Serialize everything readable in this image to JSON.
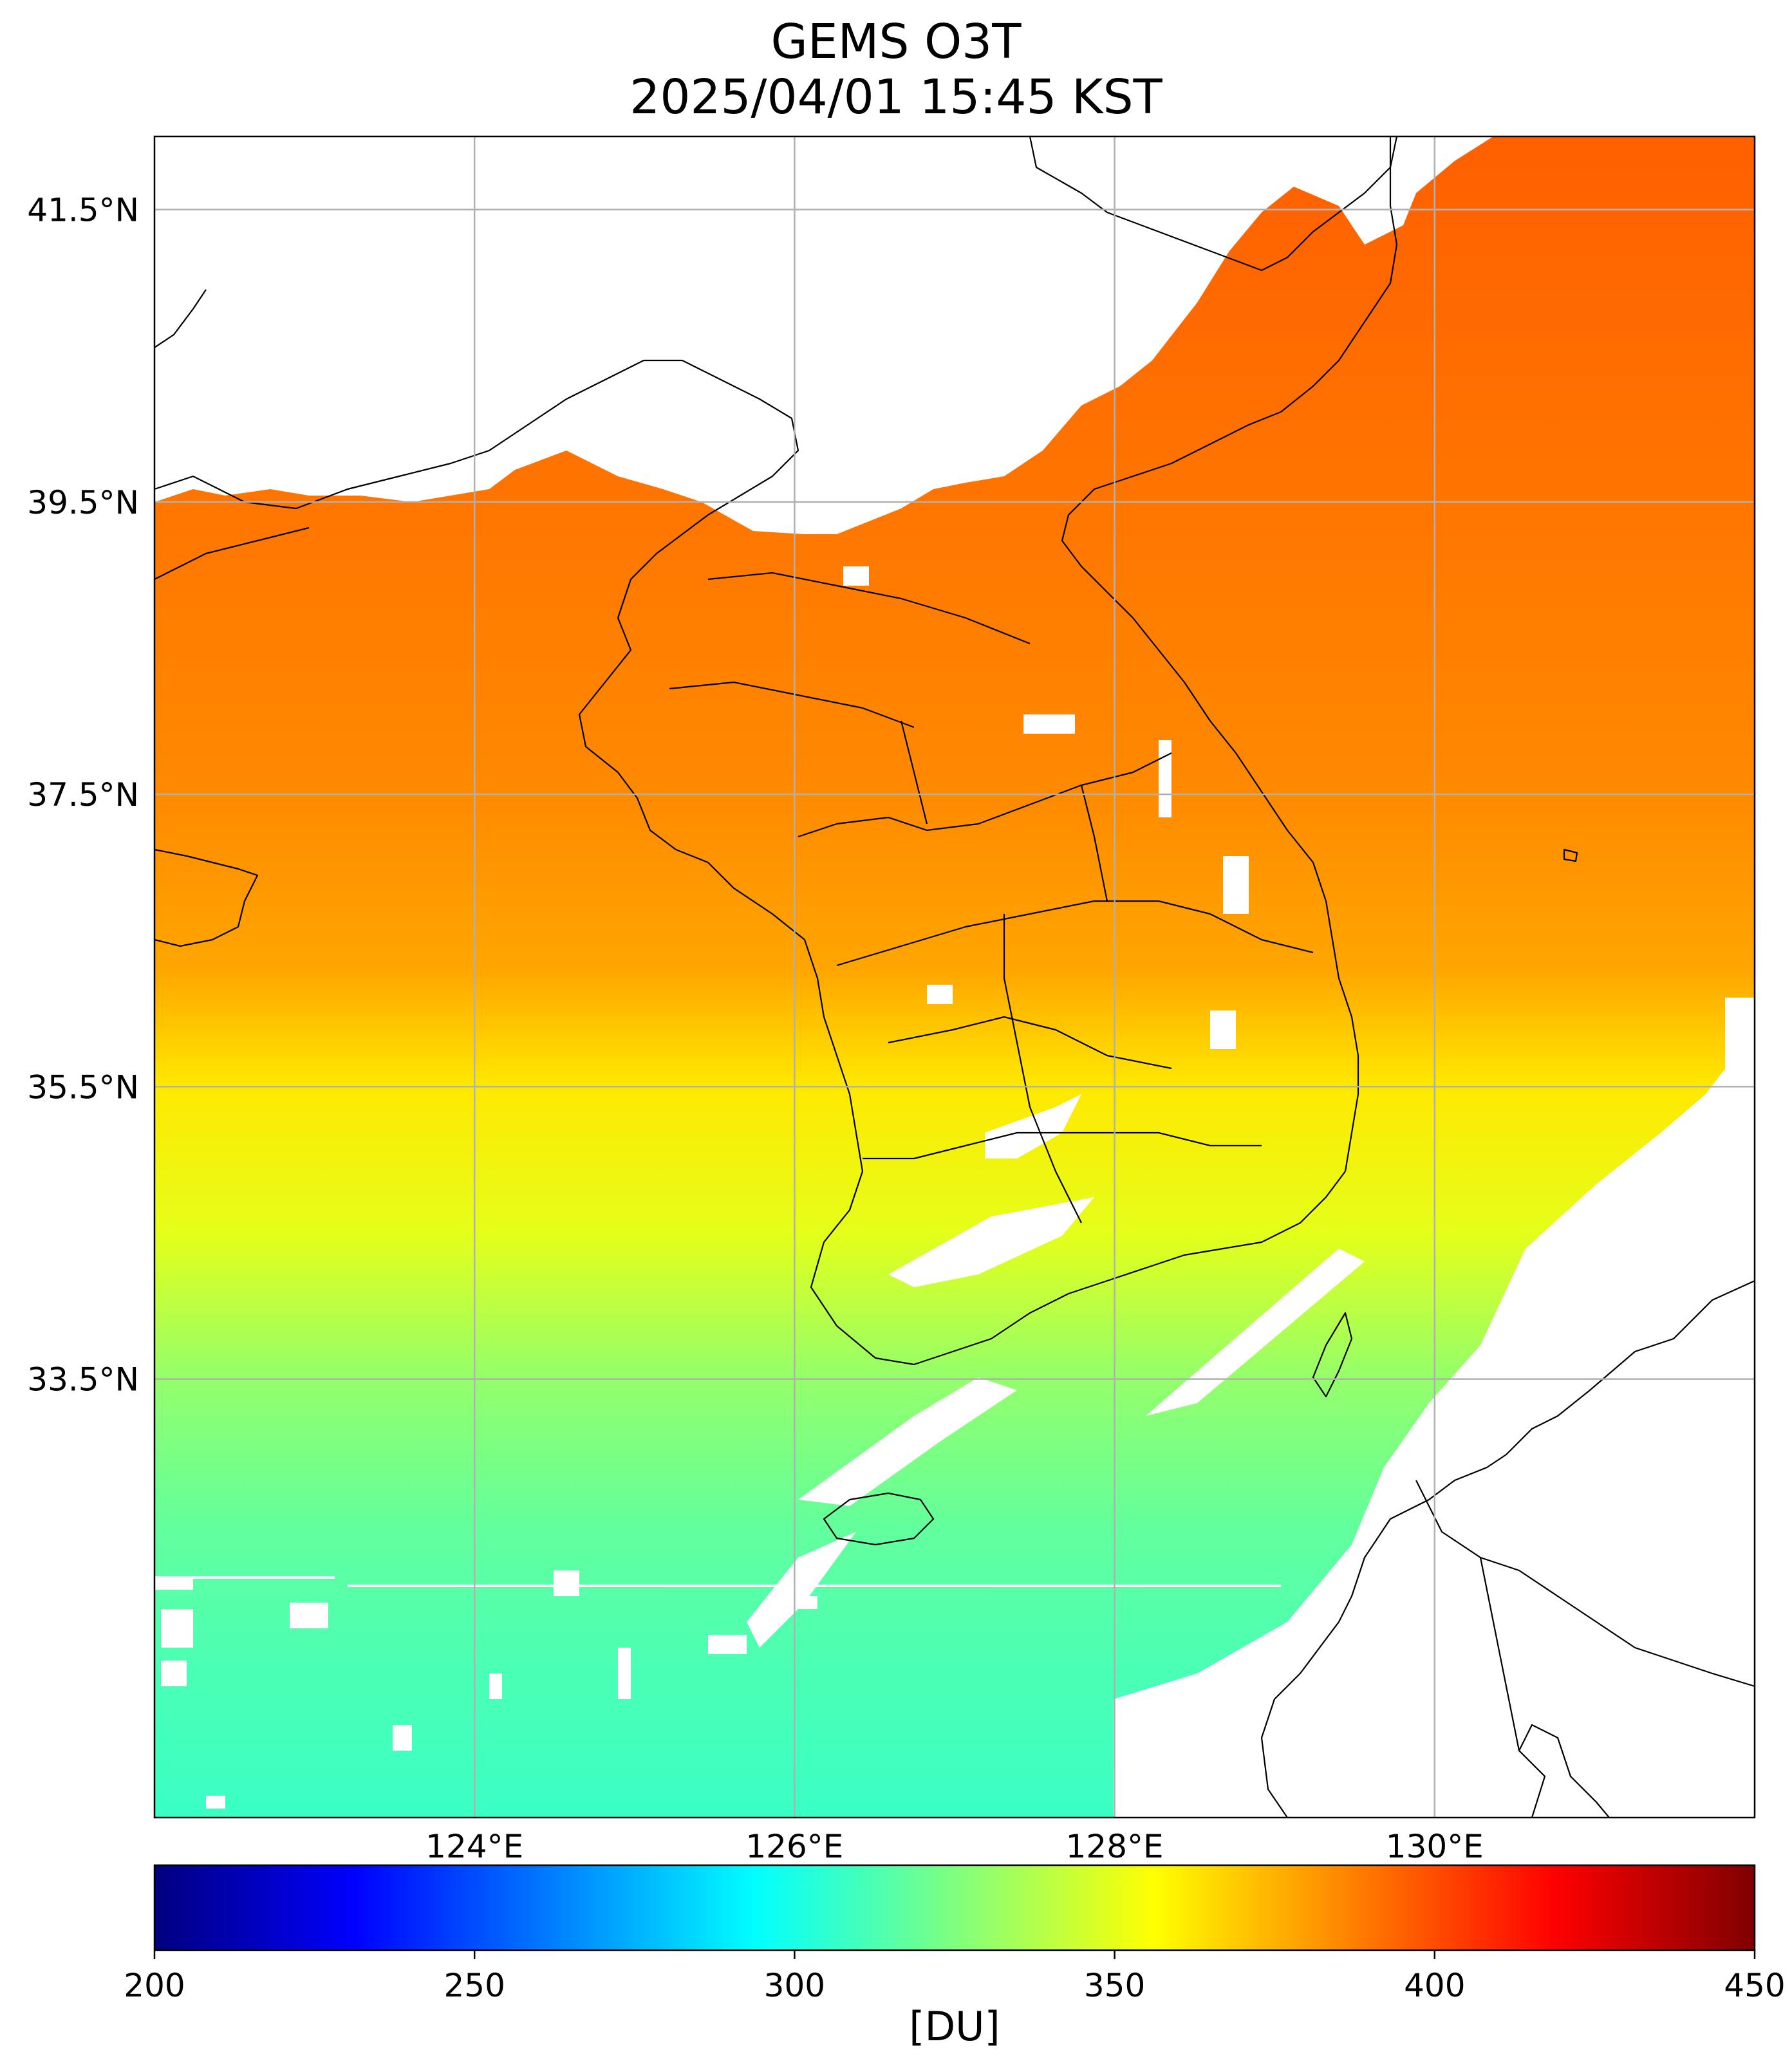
{
  "title": {
    "line1": "GEMS O3T",
    "line2": "2025/04/01 15:45 KST"
  },
  "map": {
    "lon_range": [
      122.0,
      132.0
    ],
    "lat_range": [
      30.5,
      42.0
    ],
    "lon_ticks": [
      "124°E",
      "126°E",
      "128°E",
      "130°E"
    ],
    "lon_tick_values": [
      124,
      126,
      128,
      130
    ],
    "lat_ticks": [
      "41.5°N",
      "39.5°N",
      "37.5°N",
      "35.5°N",
      "33.5°N"
    ],
    "lat_tick_values": [
      41.5,
      39.5,
      37.5,
      35.5,
      33.5
    ],
    "grid": true,
    "no_data_color": "#ffffff",
    "coastline_color": "#000000",
    "field_description_rows": [
      {
        "lat": 41.8,
        "value": 395
      },
      {
        "lat": 39.5,
        "value": 390
      },
      {
        "lat": 37.5,
        "value": 385
      },
      {
        "lat": 36.3,
        "value": 378
      },
      {
        "lat": 35.5,
        "value": 362
      },
      {
        "lat": 34.5,
        "value": 350
      },
      {
        "lat": 33.5,
        "value": 330
      },
      {
        "lat": 32.5,
        "value": 318
      },
      {
        "lat": 31.5,
        "value": 312
      },
      {
        "lat": 30.5,
        "value": 308
      }
    ]
  },
  "colorbar": {
    "min": 200,
    "max": 450,
    "ticks": [
      "200",
      "250",
      "300",
      "350",
      "400",
      "450"
    ],
    "tick_values": [
      200,
      250,
      300,
      350,
      400,
      450
    ],
    "label": "[DU]",
    "colormap": "jet",
    "colors": [
      "#00007f",
      "#0000ff",
      "#007fff",
      "#00ffff",
      "#7fff7f",
      "#ffff00",
      "#ff7f00",
      "#ff0000",
      "#7f0000"
    ]
  }
}
